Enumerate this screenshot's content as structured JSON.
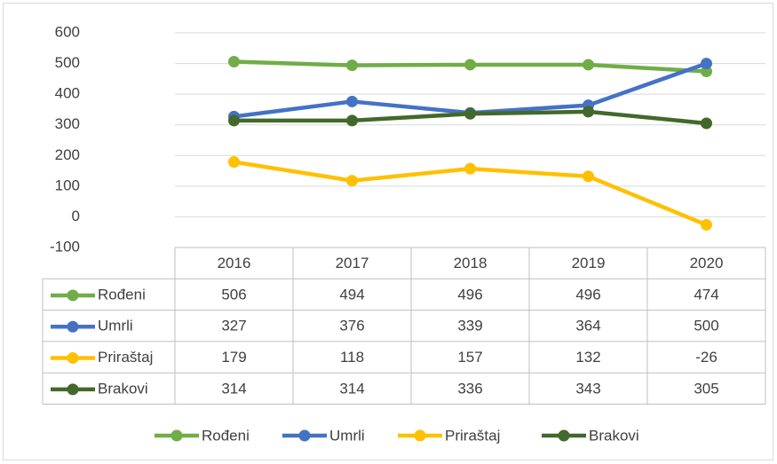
{
  "chart_data": {
    "type": "line",
    "categories": [
      "2016",
      "2017",
      "2018",
      "2019",
      "2020"
    ],
    "series": [
      {
        "name": "Rođeni",
        "color": "#70ad47",
        "values": [
          506,
          494,
          496,
          496,
          474
        ]
      },
      {
        "name": "Umrli",
        "color": "#4472c4",
        "values": [
          327,
          376,
          339,
          364,
          500
        ]
      },
      {
        "name": "Priraštaj",
        "color": "#ffc000",
        "values": [
          179,
          118,
          157,
          132,
          -26
        ]
      },
      {
        "name": "Brakovi",
        "color": "#43682b",
        "values": [
          314,
          314,
          336,
          343,
          305
        ]
      }
    ],
    "ylim": [
      -100,
      600
    ],
    "yticks": [
      -100,
      0,
      100,
      200,
      300,
      400,
      500,
      600
    ],
    "grid": true,
    "data_table": true,
    "legend": "bottom"
  }
}
